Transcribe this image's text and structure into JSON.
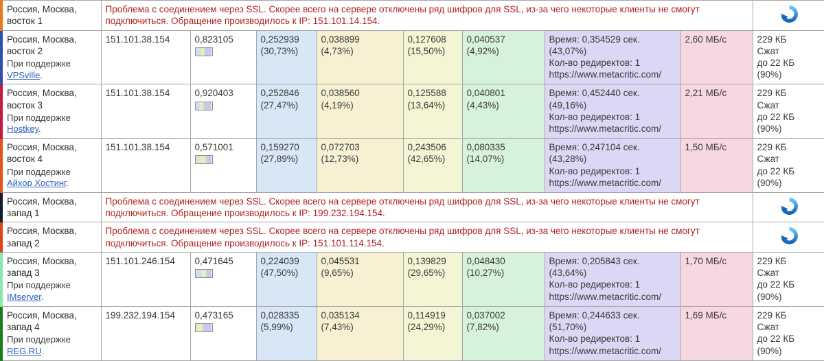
{
  "colors": {
    "col_blue": "#d7e7f6",
    "col_cream": "#f7f0d2",
    "col_yellow": "#f3f5d4",
    "col_green": "#d7f2da",
    "col_purple": "#dcd7f4",
    "col_pink": "#f8d8e0",
    "border_grey": "#a6a6a6",
    "error_red": "#b22222",
    "link_blue": "#2b5fbf",
    "text_dark": "#3a3a3a",
    "icon_light": "#6ec6f5",
    "icon_dark": "#1565b8"
  },
  "minibar_colors": [
    "#cfe0f0",
    "#ece2b8",
    "#e9edc4",
    "#c9eccd",
    "#cdc6ec"
  ],
  "table": {
    "rows": [
      {
        "type": "error",
        "accent": "#e8791e",
        "location": "Россия, Москва, восток 1",
        "error_text": "Проблема с соединением через SSL. Скорее всего на сервере отключены ряд шифров для SSL, из-за чего некоторые клиенты не смогут подключиться. Обращение производилось к IP: 151.101.14.154."
      },
      {
        "type": "data",
        "accent": "#2e4fb0",
        "location": "Россия, Москва, восток 2",
        "support_prefix": "При поддержке",
        "sponsor": "VPSville",
        "ip": "151.101.38.154",
        "total": "0,823105",
        "metrics": [
          {
            "value": "0,252939",
            "pct": "(30,73%)",
            "pct_num": 30.73
          },
          {
            "value": "0,038899",
            "pct": "(4,73%)",
            "pct_num": 4.73
          },
          {
            "value": "0,127608",
            "pct": "(15,50%)",
            "pct_num": 15.5
          },
          {
            "value": "0,040537",
            "pct": "(4,92%)",
            "pct_num": 4.92
          }
        ],
        "time": {
          "label": "Время: 0,354529 сек.",
          "pct": "(43,07%)",
          "pct_num": 43.07,
          "redirects": "Кол-во редиректов: 1",
          "url": "https://www.metacritic.com/"
        },
        "speed": "2,60 МБ/с",
        "size_lines": [
          "229 КБ",
          "Сжат",
          "до 22 КБ",
          "(90%)"
        ]
      },
      {
        "type": "data",
        "accent": "#c41a3f",
        "location": "Россия, Москва, восток 3",
        "support_prefix": "При поддержке",
        "sponsor": "Hostkey",
        "ip": "151.101.38.154",
        "total": "0,920403",
        "metrics": [
          {
            "value": "0,252846",
            "pct": "(27,47%)",
            "pct_num": 27.47
          },
          {
            "value": "0,038560",
            "pct": "(4,19%)",
            "pct_num": 4.19
          },
          {
            "value": "0,125588",
            "pct": "(13,64%)",
            "pct_num": 13.64
          },
          {
            "value": "0,040801",
            "pct": "(4,43%)",
            "pct_num": 4.43
          }
        ],
        "time": {
          "label": "Время: 0,452440 сек.",
          "pct": "(49,16%)",
          "pct_num": 49.16,
          "redirects": "Кол-во редиректов: 1",
          "url": "https://www.metacritic.com/"
        },
        "speed": "2,21 МБ/с",
        "size_lines": [
          "229 КБ",
          "Сжат",
          "до 22 КБ",
          "(90%)"
        ]
      },
      {
        "type": "data",
        "accent": "#e2561b",
        "location": "Россия, Москва, восток 4",
        "support_prefix": "При поддержке",
        "sponsor": "Айхор Хостинг",
        "ip": "151.101.38.154",
        "total": "0,571001",
        "metrics": [
          {
            "value": "0,159270",
            "pct": "(27,89%)",
            "pct_num": 27.89
          },
          {
            "value": "0,072703",
            "pct": "(12,73%)",
            "pct_num": 12.73
          },
          {
            "value": "0,243506",
            "pct": "(42,65%)",
            "pct_num": 42.65
          },
          {
            "value": "0,080335",
            "pct": "(14,07%)",
            "pct_num": 14.07
          }
        ],
        "time": {
          "label": "Время: 0,247104 сек.",
          "pct": "(43,28%)",
          "pct_num": 43.28,
          "redirects": "Кол-во редиректов: 1",
          "url": "https://www.metacritic.com/"
        },
        "speed": "1,50 МБ/с",
        "size_lines": [
          "229 КБ",
          "Сжат",
          "до 22 КБ",
          "(90%)"
        ]
      },
      {
        "type": "error",
        "accent": "#161c30",
        "location": "Россия, Москва, запад 1",
        "error_text": "Проблема с соединением через SSL. Скорее всего на сервере отключены ряд шифров для SSL, из-за чего некоторые клиенты не смогут подключиться. Обращение производилось к IP: 199.232.194.154."
      },
      {
        "type": "error",
        "accent": "#dd4418",
        "location": "Россия, Москва, запад 2",
        "error_text": "Проблема с соединением через SSL. Скорее всего на сервере отключены ряд шифров для SSL, из-за чего некоторые клиенты не смогут подключиться. Обращение производилось к IP: 151.101.114.154."
      },
      {
        "type": "data",
        "accent": "#8be8ae",
        "location": "Россия, Москва, запад 3",
        "support_prefix": "При поддержке",
        "sponsor": "IMserver",
        "ip": "151.101.246.154",
        "total": "0,471645",
        "metrics": [
          {
            "value": "0,224039",
            "pct": "(47,50%)",
            "pct_num": 47.5
          },
          {
            "value": "0,045531",
            "pct": "(9,65%)",
            "pct_num": 9.65
          },
          {
            "value": "0,139829",
            "pct": "(29,65%)",
            "pct_num": 29.65
          },
          {
            "value": "0,048430",
            "pct": "(10,27%)",
            "pct_num": 10.27
          }
        ],
        "time": {
          "label": "Время: 0,205843 сек.",
          "pct": "(43,64%)",
          "pct_num": 43.64,
          "redirects": "Кол-во редиректов: 1",
          "url": "https://www.metacritic.com/"
        },
        "speed": "1,70 МБ/с",
        "size_lines": [
          "229 КБ",
          "Сжат",
          "до 22 КБ",
          "(90%)"
        ]
      },
      {
        "type": "data",
        "accent": "#1b7e1b",
        "location": "Россия, Москва, запад 4",
        "support_prefix": "При поддержке",
        "sponsor": "REG.RU",
        "ip": "199.232.194.154",
        "total": "0,473165",
        "metrics": [
          {
            "value": "0,028335",
            "pct": "(5,99%)",
            "pct_num": 5.99
          },
          {
            "value": "0,035134",
            "pct": "(7,43%)",
            "pct_num": 7.43
          },
          {
            "value": "0,114919",
            "pct": "(24,29%)",
            "pct_num": 24.29
          },
          {
            "value": "0,037002",
            "pct": "(7,82%)",
            "pct_num": 7.82
          }
        ],
        "time": {
          "label": "Время: 0,244633 сек.",
          "pct": "(51,70%)",
          "pct_num": 51.7,
          "redirects": "Кол-во редиректов: 1",
          "url": "https://www.metacritic.com/"
        },
        "speed": "1,69 МБ/с",
        "size_lines": [
          "229 КБ",
          "Сжат",
          "до 22 КБ",
          "(90%)"
        ]
      }
    ]
  }
}
